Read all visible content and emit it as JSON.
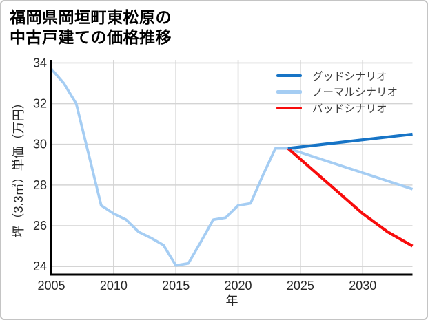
{
  "card": {
    "background": "#ffffff",
    "border_color": "#c4c4c4"
  },
  "title": {
    "line1": "福岡県岡垣町東松原の",
    "line2": "中古戸建ての価格推移"
  },
  "chart_data": {
    "type": "line",
    "title": "福岡県岡垣町東松原の中古戸建ての価格推移",
    "xlabel": "年",
    "ylabel": "坪（3.3㎡）単価（万円）",
    "xlim": [
      2005,
      2034
    ],
    "ylim": [
      23.6,
      34.15
    ],
    "xticks": [
      2005,
      2010,
      2015,
      2020,
      2025,
      2030
    ],
    "yticks": [
      24,
      26,
      28,
      30,
      32,
      34
    ],
    "grid": true,
    "colors": {
      "grid": "#d4d4d4",
      "axis": "#000000",
      "tick_text": "#262626",
      "good": "#1774c6",
      "normal": "#a5cdf3",
      "bad": "#f80c0c"
    },
    "legend": {
      "position": "top-right",
      "entries": [
        {
          "id": "good",
          "label": "グッドシナリオ",
          "color": "#1774c6"
        },
        {
          "id": "normal",
          "label": "ノーマルシナリオ",
          "color": "#a5cdf3"
        },
        {
          "id": "bad",
          "label": "バッドシナリオ",
          "color": "#f80c0c"
        }
      ]
    },
    "series": [
      {
        "id": "normal",
        "name": "ノーマルシナリオ",
        "color": "#a5cdf3",
        "width": 3.8,
        "x": [
          2005,
          2006,
          2007,
          2008,
          2009,
          2010,
          2011,
          2012,
          2013,
          2014,
          2015,
          2016,
          2017,
          2018,
          2019,
          2020,
          2021,
          2022,
          2023,
          2024,
          2034
        ],
        "y": [
          33.7,
          33.0,
          32.0,
          29.5,
          27.0,
          26.6,
          26.3,
          25.7,
          25.4,
          25.05,
          24.05,
          24.15,
          25.2,
          26.3,
          26.4,
          27.0,
          27.1,
          28.5,
          29.8,
          29.8,
          27.8
        ]
      },
      {
        "id": "bad",
        "name": "バッドシナリオ",
        "color": "#f80c0c",
        "width": 4.2,
        "x": [
          2024,
          2030,
          2032,
          2034
        ],
        "y": [
          29.8,
          26.6,
          25.7,
          25.0
        ]
      },
      {
        "id": "good",
        "name": "グッドシナリオ",
        "color": "#1774c6",
        "width": 4.2,
        "x": [
          2024,
          2034
        ],
        "y": [
          29.8,
          30.5
        ]
      }
    ]
  }
}
